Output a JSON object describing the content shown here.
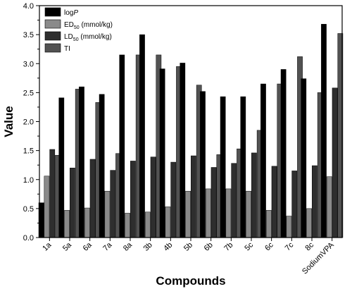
{
  "chart_data": {
    "type": "bar",
    "xlabel": "Compounds",
    "ylabel": "Value",
    "ylim": [
      0,
      4.0
    ],
    "yticks": [
      "0.0",
      "0.5",
      "1.0",
      "1.5",
      "2.0",
      "2.5",
      "3.0",
      "3.5",
      "4.0"
    ],
    "categories": [
      "1a",
      "5a",
      "6a",
      "7a",
      "8a",
      "3b",
      "4b",
      "5b",
      "6b",
      "7b",
      "5c",
      "6c",
      "7c",
      "8c",
      "SodiumVPA"
    ],
    "legend_position": "top-left",
    "series": [
      {
        "name": "logP",
        "name_main": "log",
        "name_italic": "P",
        "color": "#000000",
        "values": [
          0.6,
          2.41,
          2.6,
          2.47,
          3.15,
          3.5,
          2.91,
          3.01,
          2.52,
          2.43,
          2.43,
          2.65,
          2.9,
          2.74,
          3.68
        ]
      },
      {
        "name": "ED50 (mmol/kg)",
        "name_main": "ED",
        "name_sub": "50",
        "name_suffix": " (mmol/kg)",
        "color": "#8a8a8a",
        "values": [
          1.06,
          0.47,
          0.51,
          0.8,
          0.42,
          0.44,
          0.53,
          0.8,
          0.84,
          0.84,
          0.8,
          0.47,
          0.37,
          0.5,
          1.05
        ]
      },
      {
        "name": "LD50 (mmol/kg)",
        "name_main": "LD",
        "name_sub": "50",
        "name_suffix": " (mmol/kg)",
        "color": "#2e2e2e",
        "values": [
          1.52,
          1.2,
          1.35,
          1.16,
          1.32,
          1.39,
          1.3,
          1.41,
          1.21,
          1.28,
          1.46,
          1.23,
          1.15,
          1.24,
          2.58
        ]
      },
      {
        "name": "TI",
        "name_main": "TI",
        "color": "#525252",
        "values": [
          1.42,
          2.56,
          2.33,
          1.45,
          3.15,
          3.15,
          2.95,
          2.63,
          1.43,
          1.53,
          1.85,
          2.65,
          3.12,
          2.5,
          3.52
        ]
      }
    ]
  }
}
